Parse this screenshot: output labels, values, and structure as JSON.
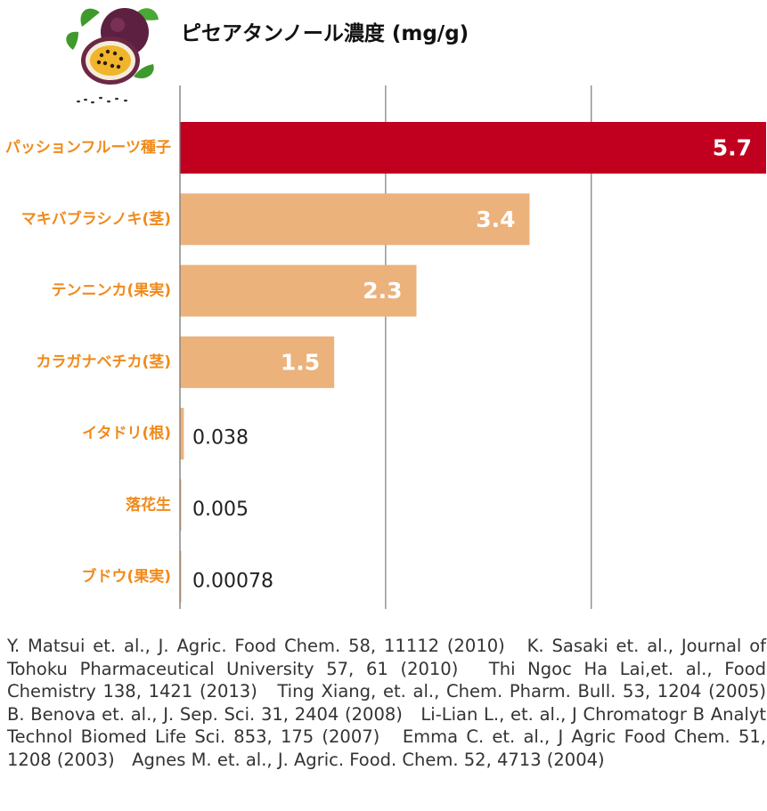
{
  "chart_data": {
    "type": "bar",
    "orientation": "horizontal",
    "title": "ピセアタンノール濃度 (mg/g)",
    "categories": [
      "パッションフルーツ種子",
      "マキバブラシノキ(茎)",
      "テンニンカ(果実)",
      "カラガナベチカ(茎)",
      "イタドリ(根)",
      "落花生",
      "ブドウ(果実)"
    ],
    "values": [
      5.7,
      3.4,
      2.3,
      1.5,
      0.038,
      0.005,
      0.00078
    ],
    "value_labels": [
      "5.7",
      "3.4",
      "2.3",
      "1.5",
      "0.038",
      "0.005",
      "0.00078"
    ],
    "xlim": [
      0,
      5.7
    ],
    "grid_x_at": [
      2,
      4
    ],
    "grid": true,
    "legend": "none",
    "xlabel": "",
    "ylabel": ""
  },
  "colors": {
    "highlight_bar": "#c1001f",
    "bar": "#ecb27c",
    "category_label": "#f08a1c",
    "grid": "#7a7a7a",
    "label_inside": "#ffffff",
    "label_outside": "#222222"
  },
  "icons": {
    "logo": "passion-fruit-icon"
  },
  "references": "Y. Matsui et. al., J. Agric. Food Chem. 58, 11112 (2010)　K. Sasaki et. al., Journal of Tohoku Pharmaceutical University 57, 61 (2010)　Thi Ngoc Ha Lai,et. al., Food Chemistry 138, 1421 (2013)　Ting Xiang, et. al., Chem. Pharm. Bull. 53, 1204 (2005)　B. Benova et. al., J. Sep. Sci. 31, 2404 (2008)　Li-Lian L., et. al., J Chromatogr B Analyt Technol Biomed Life Sci. 853, 175 (2007)　Emma C. et. al., J Agric Food Chem. 51, 1208 (2003)　Agnes M. et. al., J. Agric. Food. Chem. 52, 4713 (2004)"
}
